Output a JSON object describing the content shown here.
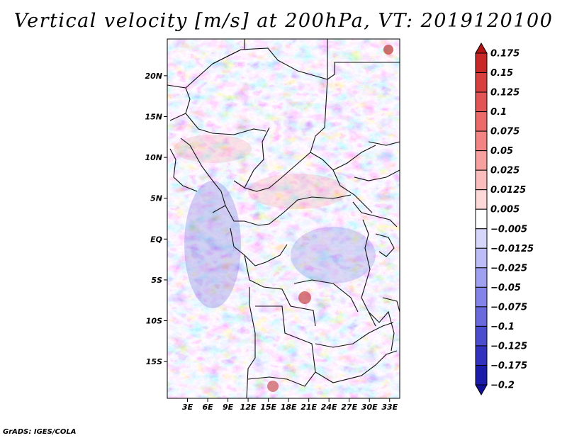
{
  "title": "Vertical velocity [m/s] at 200hPa, VT: 2019120100",
  "footer": "GrADS: IGES/COLA",
  "map": {
    "lat_ticks": [
      {
        "lat": 20,
        "label": "20N"
      },
      {
        "lat": 15,
        "label": "15N"
      },
      {
        "lat": 10,
        "label": "10N"
      },
      {
        "lat": 5,
        "label": "5N"
      },
      {
        "lat": 0,
        "label": "EQ"
      },
      {
        "lat": -5,
        "label": "5S"
      },
      {
        "lat": -10,
        "label": "10S"
      },
      {
        "lat": -15,
        "label": "15S"
      }
    ],
    "lon_ticks": [
      {
        "lon": 3,
        "label": "3E"
      },
      {
        "lon": 6,
        "label": "6E"
      },
      {
        "lon": 9,
        "label": "9E"
      },
      {
        "lon": 12,
        "label": "12E"
      },
      {
        "lon": 15,
        "label": "15E"
      },
      {
        "lon": 18,
        "label": "18E"
      },
      {
        "lon": 21,
        "label": "21E"
      },
      {
        "lon": 24,
        "label": "24E"
      },
      {
        "lon": 27,
        "label": "27E"
      },
      {
        "lon": 30,
        "label": "30E"
      },
      {
        "lon": 33,
        "label": "33E"
      }
    ],
    "lon_range": [
      0,
      34.5
    ],
    "lat_range": [
      -19.5,
      24.5
    ]
  },
  "colorbar": {
    "levels": [
      "0.175",
      "0.15",
      "0.125",
      "0.1",
      "0.075",
      "0.05",
      "0.025",
      "0.0125",
      "0.005",
      "−0.005",
      "−0.0125",
      "−0.025",
      "−0.05",
      "−0.075",
      "−0.1",
      "−0.125",
      "−0.175",
      "−0.2"
    ],
    "colors": [
      "#b41414",
      "#c82828",
      "#d84040",
      "#e25555",
      "#ec6a6a",
      "#f28484",
      "#f6a0a0",
      "#fabcbc",
      "#fdd8d8",
      "#ffffff",
      "#d6d6fb",
      "#bcbcf7",
      "#a0a0f0",
      "#8484e8",
      "#6a6adc",
      "#4c4cce",
      "#3232be",
      "#1c1caa",
      "#10109a"
    ]
  }
}
